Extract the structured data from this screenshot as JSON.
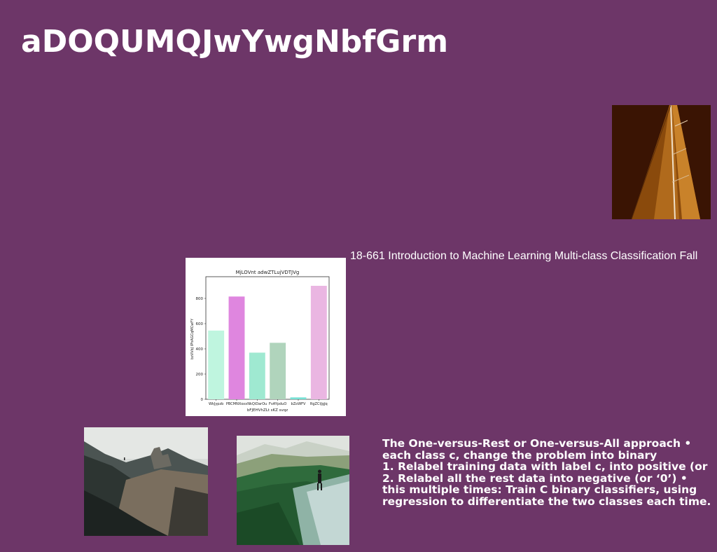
{
  "slide": {
    "title": "aDOQUMQJwYwgNbfGrm",
    "course_line": "18-661 Introduction to Machine Learning Multi-class Classification Fall",
    "body_lines": [
      "The One-versus-Rest or One-versus-All approach •",
      "each class c, change the problem into binary",
      "1. Relabel training data with label c, into positive (or",
      "2. Relabel all the rest data into negative (or ‘0’) •",
      "this multiple times: Train C binary classifiers, using",
      "regression to differentiate the two classes each time."
    ],
    "background_color": "#6d3668"
  },
  "images": {
    "top_right": "bridge-pylon-photo",
    "bottom_left": "rocky-ridge-photo",
    "bottom_middle": "mountain-hiker-photo"
  },
  "chart_data": {
    "type": "bar",
    "title": "MjLOVnt adwZTLujVDTJVg",
    "xlabel": "bFJEHVhZLt sKZ svqz",
    "ylabel": "bzVVbJ IPhAGCqMCwFY",
    "categories": [
      "WkJypzb",
      "PBCMNXoxx",
      "NkQiDarOu",
      "FvAYpduO",
      "bZoWFV",
      "RgZCtJgJq"
    ],
    "values": [
      545,
      815,
      370,
      448,
      15,
      900
    ],
    "colors": [
      "#bff5df",
      "#df86df",
      "#9fe9d1",
      "#b0d4bc",
      "#78e0d4",
      "#eab6e2"
    ],
    "yticks": [
      0,
      200,
      400,
      600,
      800
    ],
    "ylim": [
      0,
      950
    ],
    "grid": false
  }
}
